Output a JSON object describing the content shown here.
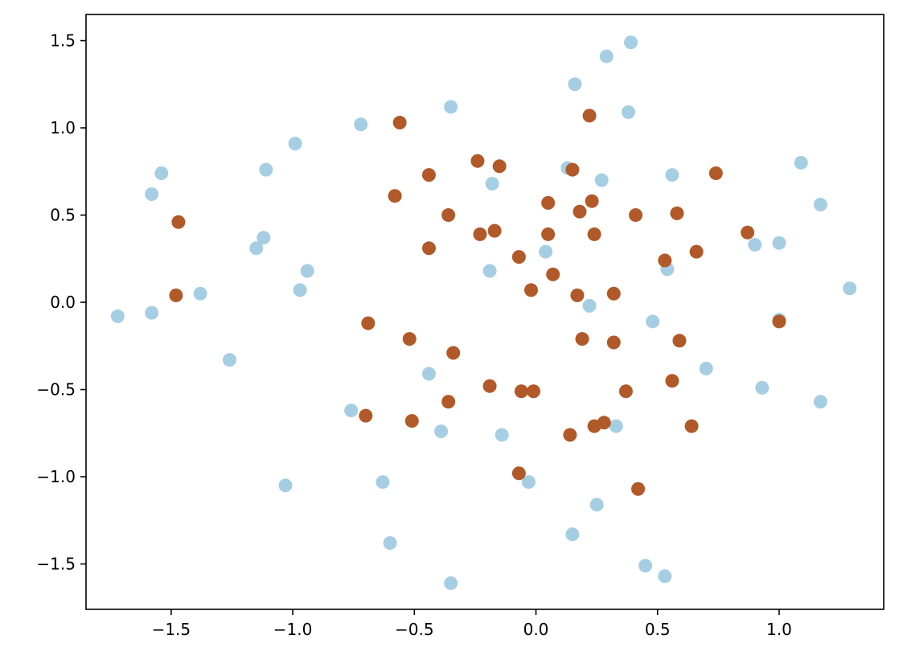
{
  "chart_data": {
    "type": "scatter",
    "title": "",
    "xlabel": "",
    "ylabel": "",
    "xlim": [
      -1.85,
      1.43
    ],
    "ylim": [
      -1.76,
      1.65
    ],
    "grid": false,
    "legend": "none",
    "x_ticks": [
      -1.5,
      -1.0,
      -0.5,
      0.0,
      0.5,
      1.0
    ],
    "x_tick_labels": [
      "−1.5",
      "−1.0",
      "−0.5",
      "0.0",
      "0.5",
      "1.0"
    ],
    "y_ticks": [
      -1.5,
      -1.0,
      -0.5,
      0.0,
      0.5,
      1.0,
      1.5
    ],
    "y_tick_labels": [
      "−1.5",
      "−1.0",
      "−0.5",
      "0.0",
      "0.5",
      "1.0",
      "1.5"
    ],
    "series": [
      {
        "color": "#a6cee3",
        "points": [
          [
            0.39,
            1.49
          ],
          [
            0.29,
            1.41
          ],
          [
            0.16,
            1.25
          ],
          [
            -0.35,
            1.12
          ],
          [
            0.38,
            1.09
          ],
          [
            -0.72,
            1.02
          ],
          [
            -0.99,
            0.91
          ],
          [
            1.09,
            0.8
          ],
          [
            -1.11,
            0.76
          ],
          [
            0.13,
            0.77
          ],
          [
            -1.54,
            0.74
          ],
          [
            0.56,
            0.73
          ],
          [
            0.27,
            0.7
          ],
          [
            -0.18,
            0.68
          ],
          [
            -1.58,
            0.62
          ],
          [
            1.17,
            0.56
          ],
          [
            -1.12,
            0.37
          ],
          [
            -1.15,
            0.31
          ],
          [
            0.9,
            0.33
          ],
          [
            1.0,
            0.34
          ],
          [
            0.04,
            0.29
          ],
          [
            -0.94,
            0.18
          ],
          [
            -0.19,
            0.18
          ],
          [
            0.54,
            0.19
          ],
          [
            -0.97,
            0.07
          ],
          [
            -1.38,
            0.05
          ],
          [
            1.29,
            0.08
          ],
          [
            -1.72,
            -0.08
          ],
          [
            -1.58,
            -0.06
          ],
          [
            0.22,
            -0.02
          ],
          [
            1.0,
            -0.1
          ],
          [
            0.48,
            -0.11
          ],
          [
            -1.26,
            -0.33
          ],
          [
            -0.44,
            -0.41
          ],
          [
            0.7,
            -0.38
          ],
          [
            0.93,
            -0.49
          ],
          [
            1.17,
            -0.57
          ],
          [
            -0.76,
            -0.62
          ],
          [
            -0.39,
            -0.74
          ],
          [
            -0.14,
            -0.76
          ],
          [
            0.33,
            -0.71
          ],
          [
            -1.03,
            -1.05
          ],
          [
            -0.63,
            -1.03
          ],
          [
            -0.03,
            -1.03
          ],
          [
            0.25,
            -1.16
          ],
          [
            0.15,
            -1.33
          ],
          [
            -0.6,
            -1.38
          ],
          [
            0.45,
            -1.51
          ],
          [
            0.53,
            -1.57
          ],
          [
            -0.35,
            -1.61
          ]
        ]
      },
      {
        "color": "#b15928",
        "points": [
          [
            -0.56,
            1.03
          ],
          [
            0.22,
            1.07
          ],
          [
            -0.24,
            0.81
          ],
          [
            -0.15,
            0.78
          ],
          [
            0.15,
            0.76
          ],
          [
            0.74,
            0.74
          ],
          [
            -0.44,
            0.73
          ],
          [
            -0.58,
            0.61
          ],
          [
            0.05,
            0.57
          ],
          [
            0.23,
            0.58
          ],
          [
            0.18,
            0.52
          ],
          [
            0.58,
            0.51
          ],
          [
            -0.36,
            0.5
          ],
          [
            0.41,
            0.5
          ],
          [
            -1.47,
            0.46
          ],
          [
            -0.23,
            0.39
          ],
          [
            -0.17,
            0.41
          ],
          [
            0.05,
            0.39
          ],
          [
            0.24,
            0.39
          ],
          [
            0.87,
            0.4
          ],
          [
            -0.44,
            0.31
          ],
          [
            -0.07,
            0.26
          ],
          [
            0.66,
            0.29
          ],
          [
            0.53,
            0.24
          ],
          [
            0.07,
            0.16
          ],
          [
            -0.02,
            0.07
          ],
          [
            0.17,
            0.04
          ],
          [
            0.32,
            0.05
          ],
          [
            -1.48,
            0.04
          ],
          [
            -0.69,
            -0.12
          ],
          [
            1.0,
            -0.11
          ],
          [
            -0.52,
            -0.21
          ],
          [
            0.19,
            -0.21
          ],
          [
            0.59,
            -0.22
          ],
          [
            0.32,
            -0.23
          ],
          [
            -0.34,
            -0.29
          ],
          [
            0.56,
            -0.45
          ],
          [
            -0.19,
            -0.48
          ],
          [
            -0.06,
            -0.51
          ],
          [
            -0.01,
            -0.51
          ],
          [
            0.37,
            -0.51
          ],
          [
            -0.36,
            -0.57
          ],
          [
            -0.7,
            -0.65
          ],
          [
            -0.51,
            -0.68
          ],
          [
            0.28,
            -0.69
          ],
          [
            0.24,
            -0.71
          ],
          [
            0.64,
            -0.71
          ],
          [
            0.14,
            -0.76
          ],
          [
            -0.07,
            -0.98
          ],
          [
            0.42,
            -1.07
          ]
        ]
      }
    ]
  }
}
